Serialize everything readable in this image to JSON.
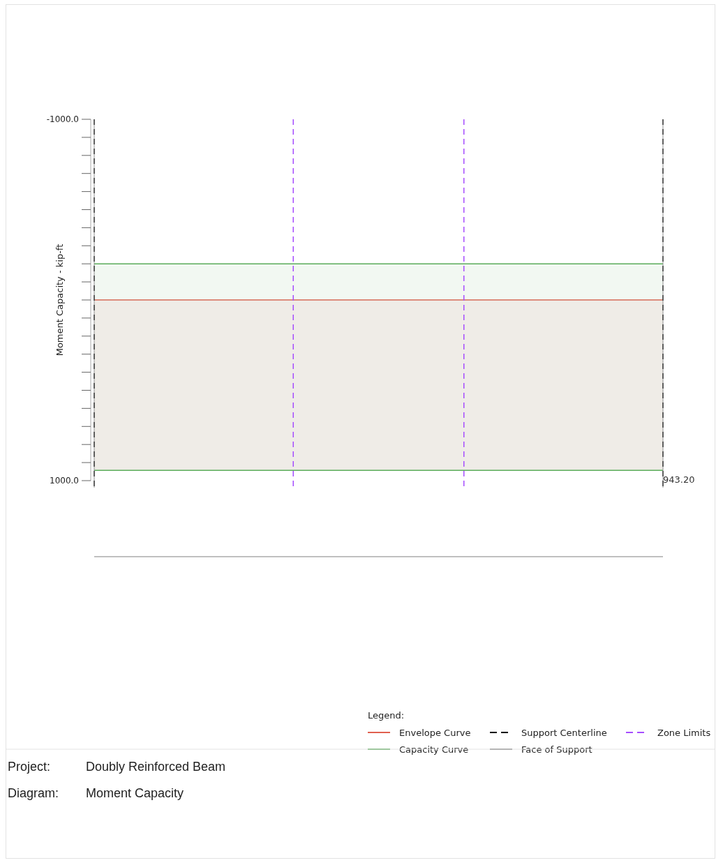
{
  "chart_data": {
    "type": "area",
    "ylabel": "Moment Capacity - kip-ft",
    "categories": [
      null,
      null,
      null,
      null,
      null,
      null,
      null,
      null,
      null,
      null,
      null,
      null,
      null,
      null,
      null,
      null,
      null,
      null,
      null,
      null,
      null
    ],
    "ylim": [
      1000,
      -1000
    ],
    "yticks": [
      {
        "value": -1000,
        "label": "-1000.0"
      },
      {
        "value": -900,
        "label": null
      },
      {
        "value": -800,
        "label": null
      },
      {
        "value": -700,
        "label": null
      },
      {
        "value": -600,
        "label": null
      },
      {
        "value": -500,
        "label": null
      },
      {
        "value": -400,
        "label": null
      },
      {
        "value": -300,
        "label": null
      },
      {
        "value": -200,
        "label": null
      },
      {
        "value": -100,
        "label": null
      },
      {
        "value": 0,
        "label": null
      },
      {
        "value": 100,
        "label": null
      },
      {
        "value": 200,
        "label": null
      },
      {
        "value": 300,
        "label": null
      },
      {
        "value": 400,
        "label": null
      },
      {
        "value": 500,
        "label": null
      },
      {
        "value": 600,
        "label": null
      },
      {
        "value": 700,
        "label": null
      },
      {
        "value": 800,
        "label": null
      },
      {
        "value": 900,
        "label": null
      },
      {
        "value": 1000,
        "label": "1000.0"
      }
    ],
    "tick_labels": "y",
    "legend": "bottom right",
    "legend_title": "Legend:",
    "series": [
      {
        "type": "line",
        "name": "Envelope Curve",
        "color": "#e0604f",
        "values": [
          0,
          0,
          0,
          0,
          0,
          0,
          0,
          0,
          0,
          0,
          0,
          0,
          0,
          0,
          0,
          0,
          0,
          0,
          0,
          0,
          0
        ]
      },
      {
        "name": "Capacity Curve",
        "color": "#5aac5a",
        "values": [
          -200,
          -200,
          -200,
          -200,
          -200,
          -200,
          -200,
          -200,
          -200,
          -200,
          -200,
          -200,
          -200,
          -200,
          -200,
          -200,
          -200,
          -200,
          -200,
          -200,
          -200
        ]
      },
      {
        "color": "#5aac5a",
        "values": [
          943.2,
          943.2,
          943.2,
          943.2,
          943.2,
          943.2,
          943.2,
          943.2,
          943.2,
          943.2,
          943.2,
          943.2,
          943.2,
          943.2,
          943.2,
          943.2,
          943.2,
          943.2,
          943.2,
          943.2,
          943.2
        ],
        "value_labels": [
          null,
          null,
          null,
          null,
          null,
          null,
          null,
          null,
          null,
          null,
          null,
          null,
          null,
          null,
          null,
          null,
          null,
          null,
          null,
          null,
          "943.20"
        ]
      }
    ],
    "ref_lines": [
      {
        "axis": "x",
        "label": "Support Centerline",
        "color": "#000000",
        "line_style": "dashed"
      },
      {
        "axis": "x",
        "label": "Face of Support",
        "color": "#888888",
        "line_style": "solid"
      },
      {
        "axis": "x",
        "label": "Zone Limits",
        "color": "#a64dff",
        "line_style": "dashed"
      }
    ],
    "annotations": [
      "Project:",
      "Doubly Reinforced Beam",
      "Diagram:",
      "Moment Capacity"
    ]
  }
}
